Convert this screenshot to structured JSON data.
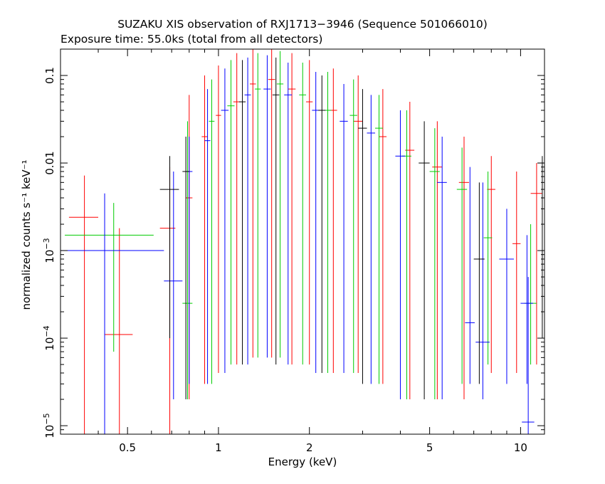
{
  "chart_data": {
    "type": "scatter",
    "title": "SUZAKU XIS observation of RXJ1713−3946 (Sequence 501066010)",
    "subtitle": "Exposure time: 55.0ks (total from all detectors)",
    "xlabel": "Energy (keV)",
    "ylabel": "normalized counts s⁻¹ keV⁻¹",
    "x_scale": "log",
    "y_scale": "log",
    "xlim": [
      0.3,
      12
    ],
    "ylim": [
      8e-06,
      0.2
    ],
    "x_ticks": [
      {
        "value": 0.5,
        "label": "0.5"
      },
      {
        "value": 1,
        "label": "1"
      },
      {
        "value": 2,
        "label": "2"
      },
      {
        "value": 5,
        "label": "5"
      },
      {
        "value": 10,
        "label": "10"
      }
    ],
    "y_ticks": [
      {
        "value": 1e-05,
        "base": "10",
        "exp": "−5"
      },
      {
        "value": 0.0001,
        "base": "10",
        "exp": "−4"
      },
      {
        "value": 0.001,
        "base": "10",
        "exp": "−3"
      },
      {
        "value": 0.01,
        "label": "0.01"
      },
      {
        "value": 0.1,
        "label": "0.1"
      }
    ],
    "grid": false,
    "series": [
      {
        "color": "#ff0000",
        "points": [
          {
            "x": 0.36,
            "y": 0.0024,
            "xlo": 0.32,
            "xhi": 0.4,
            "ylo": 8e-06,
            "yhi": 0.0072
          },
          {
            "x": 0.47,
            "y": 0.00011,
            "xlo": 0.42,
            "xhi": 0.52,
            "ylo": 8e-06,
            "yhi": 0.0018
          },
          {
            "x": 0.69,
            "y": 0.0018,
            "xlo": 0.64,
            "xhi": 0.72,
            "ylo": 8e-06,
            "yhi": 0.009
          },
          {
            "x": 0.8,
            "y": 0.004,
            "xlo": 0.78,
            "xhi": 0.82,
            "ylo": 2e-05,
            "yhi": 0.06
          },
          {
            "x": 0.9,
            "y": 0.02,
            "xlo": 0.88,
            "xhi": 0.92,
            "ylo": 3e-05,
            "yhi": 0.1
          },
          {
            "x": 1.0,
            "y": 0.035,
            "xlo": 0.98,
            "xhi": 1.02,
            "ylo": 4e-05,
            "yhi": 0.13
          },
          {
            "x": 1.15,
            "y": 0.05,
            "xlo": 1.12,
            "xhi": 1.18,
            "ylo": 5e-05,
            "yhi": 0.18
          },
          {
            "x": 1.3,
            "y": 0.08,
            "xlo": 1.27,
            "xhi": 1.33,
            "ylo": 6e-05,
            "yhi": 0.2
          },
          {
            "x": 1.5,
            "y": 0.09,
            "xlo": 1.46,
            "xhi": 1.54,
            "ylo": 6e-05,
            "yhi": 0.2
          },
          {
            "x": 1.75,
            "y": 0.07,
            "xlo": 1.7,
            "xhi": 1.8,
            "ylo": 5e-05,
            "yhi": 0.18
          },
          {
            "x": 2.0,
            "y": 0.05,
            "xlo": 1.95,
            "xhi": 2.05,
            "ylo": 5e-05,
            "yhi": 0.15
          },
          {
            "x": 2.4,
            "y": 0.04,
            "xlo": 2.33,
            "xhi": 2.47,
            "ylo": 4e-05,
            "yhi": 0.12
          },
          {
            "x": 2.9,
            "y": 0.03,
            "xlo": 2.8,
            "xhi": 3.0,
            "ylo": 4e-05,
            "yhi": 0.1
          },
          {
            "x": 3.5,
            "y": 0.02,
            "xlo": 3.4,
            "xhi": 3.6,
            "ylo": 3e-05,
            "yhi": 0.07
          },
          {
            "x": 4.3,
            "y": 0.014,
            "xlo": 4.15,
            "xhi": 4.45,
            "ylo": 2e-05,
            "yhi": 0.05
          },
          {
            "x": 5.3,
            "y": 0.009,
            "xlo": 5.1,
            "xhi": 5.5,
            "ylo": 2e-05,
            "yhi": 0.03
          },
          {
            "x": 6.5,
            "y": 0.006,
            "xlo": 6.25,
            "xhi": 6.75,
            "ylo": 2e-05,
            "yhi": 0.02
          },
          {
            "x": 8.0,
            "y": 0.005,
            "xlo": 7.75,
            "xhi": 8.25,
            "ylo": 4e-05,
            "yhi": 0.012
          },
          {
            "x": 9.7,
            "y": 0.0012,
            "xlo": 9.4,
            "xhi": 10.0,
            "ylo": 4e-05,
            "yhi": 0.008
          },
          {
            "x": 11.3,
            "y": 0.0045,
            "xlo": 10.8,
            "xhi": 11.8,
            "ylo": 5e-05,
            "yhi": 0.01
          }
        ]
      },
      {
        "color": "#00cc00",
        "points": [
          {
            "x": 0.45,
            "y": 0.0015,
            "xlo": 0.31,
            "xhi": 0.61,
            "ylo": 7e-05,
            "yhi": 0.0035
          },
          {
            "x": 0.79,
            "y": 0.00025,
            "xlo": 0.76,
            "xhi": 0.82,
            "ylo": 2e-05,
            "yhi": 0.03
          },
          {
            "x": 0.95,
            "y": 0.03,
            "xlo": 0.93,
            "xhi": 0.97,
            "ylo": 3e-05,
            "yhi": 0.09
          },
          {
            "x": 1.1,
            "y": 0.045,
            "xlo": 1.07,
            "xhi": 1.13,
            "ylo": 5e-05,
            "yhi": 0.15
          },
          {
            "x": 1.35,
            "y": 0.07,
            "xlo": 1.32,
            "xhi": 1.38,
            "ylo": 6e-05,
            "yhi": 0.18
          },
          {
            "x": 1.6,
            "y": 0.08,
            "xlo": 1.56,
            "xhi": 1.64,
            "ylo": 6e-05,
            "yhi": 0.19
          },
          {
            "x": 1.9,
            "y": 0.06,
            "xlo": 1.85,
            "xhi": 1.95,
            "ylo": 5e-05,
            "yhi": 0.14
          },
          {
            "x": 2.3,
            "y": 0.04,
            "xlo": 2.24,
            "xhi": 2.36,
            "ylo": 4e-05,
            "yhi": 0.11
          },
          {
            "x": 2.8,
            "y": 0.035,
            "xlo": 2.72,
            "xhi": 2.88,
            "ylo": 4e-05,
            "yhi": 0.09
          },
          {
            "x": 3.4,
            "y": 0.025,
            "xlo": 3.3,
            "xhi": 3.5,
            "ylo": 3e-05,
            "yhi": 0.06
          },
          {
            "x": 4.2,
            "y": 0.012,
            "xlo": 4.05,
            "xhi": 4.35,
            "ylo": 2e-05,
            "yhi": 0.04
          },
          {
            "x": 5.2,
            "y": 0.008,
            "xlo": 5.0,
            "xhi": 5.4,
            "ylo": 2e-05,
            "yhi": 0.025
          },
          {
            "x": 6.4,
            "y": 0.005,
            "xlo": 6.15,
            "xhi": 6.65,
            "ylo": 3e-05,
            "yhi": 0.015
          },
          {
            "x": 7.8,
            "y": 0.0014,
            "xlo": 7.55,
            "xhi": 8.05,
            "ylo": 5e-05,
            "yhi": 0.008
          },
          {
            "x": 10.8,
            "y": 0.00025,
            "xlo": 10.3,
            "xhi": 11.3,
            "ylo": 5e-05,
            "yhi": 0.002
          }
        ]
      },
      {
        "color": "#0000ff",
        "points": [
          {
            "x": 0.42,
            "y": 0.001,
            "xlo": 0.3,
            "xhi": 0.66,
            "ylo": 8e-06,
            "yhi": 0.0045
          },
          {
            "x": 0.71,
            "y": 0.00045,
            "xlo": 0.66,
            "xhi": 0.76,
            "ylo": 2e-05,
            "yhi": 0.008
          },
          {
            "x": 0.8,
            "y": 0.008,
            "xlo": 0.78,
            "xhi": 0.82,
            "ylo": 3e-05,
            "yhi": 0.02
          },
          {
            "x": 0.92,
            "y": 0.018,
            "xlo": 0.9,
            "xhi": 0.94,
            "ylo": 3e-05,
            "yhi": 0.07
          },
          {
            "x": 1.05,
            "y": 0.04,
            "xlo": 1.02,
            "xhi": 1.08,
            "ylo": 4e-05,
            "yhi": 0.12
          },
          {
            "x": 1.25,
            "y": 0.06,
            "xlo": 1.22,
            "xhi": 1.28,
            "ylo": 5e-05,
            "yhi": 0.16
          },
          {
            "x": 1.45,
            "y": 0.07,
            "xlo": 1.41,
            "xhi": 1.49,
            "ylo": 6e-05,
            "yhi": 0.17
          },
          {
            "x": 1.7,
            "y": 0.06,
            "xlo": 1.65,
            "xhi": 1.75,
            "ylo": 5e-05,
            "yhi": 0.14
          },
          {
            "x": 2.1,
            "y": 0.04,
            "xlo": 2.04,
            "xhi": 2.16,
            "ylo": 4e-05,
            "yhi": 0.11
          },
          {
            "x": 2.6,
            "y": 0.03,
            "xlo": 2.52,
            "xhi": 2.68,
            "ylo": 4e-05,
            "yhi": 0.08
          },
          {
            "x": 3.2,
            "y": 0.022,
            "xlo": 3.1,
            "xhi": 3.3,
            "ylo": 3e-05,
            "yhi": 0.06
          },
          {
            "x": 4.0,
            "y": 0.012,
            "xlo": 3.85,
            "xhi": 4.15,
            "ylo": 2e-05,
            "yhi": 0.04
          },
          {
            "x": 5.5,
            "y": 0.006,
            "xlo": 5.3,
            "xhi": 5.7,
            "ylo": 2e-05,
            "yhi": 0.02
          },
          {
            "x": 6.8,
            "y": 0.00015,
            "xlo": 6.55,
            "xhi": 7.05,
            "ylo": 3e-05,
            "yhi": 0.009
          },
          {
            "x": 7.5,
            "y": 9e-05,
            "xlo": 7.1,
            "xhi": 7.9,
            "ylo": 2e-05,
            "yhi": 0.006
          },
          {
            "x": 9.0,
            "y": 0.0008,
            "xlo": 8.5,
            "xhi": 9.5,
            "ylo": 3e-05,
            "yhi": 0.003
          },
          {
            "x": 10.5,
            "y": 0.00025,
            "xlo": 10.0,
            "xhi": 11.0,
            "ylo": 3e-05,
            "yhi": 0.0015
          },
          {
            "x": 10.6,
            "y": 1.1e-05,
            "xlo": 10.1,
            "xhi": 11.1,
            "ylo": 8e-06,
            "yhi": 0.0005
          }
        ]
      },
      {
        "color": "#000000",
        "points": [
          {
            "x": 0.69,
            "y": 0.005,
            "xlo": 0.64,
            "xhi": 0.74,
            "ylo": 0.0001,
            "yhi": 0.012
          },
          {
            "x": 0.78,
            "y": 0.008,
            "xlo": 0.76,
            "xhi": 0.8,
            "ylo": 2e-05,
            "yhi": 0.02
          },
          {
            "x": 1.2,
            "y": 0.05,
            "xlo": 1.17,
            "xhi": 1.23,
            "ylo": 5e-05,
            "yhi": 0.15
          },
          {
            "x": 1.55,
            "y": 0.06,
            "xlo": 1.51,
            "xhi": 1.59,
            "ylo": 5e-05,
            "yhi": 0.16
          },
          {
            "x": 2.2,
            "y": 0.04,
            "xlo": 2.14,
            "xhi": 2.26,
            "ylo": 4e-05,
            "yhi": 0.1
          },
          {
            "x": 3.0,
            "y": 0.025,
            "xlo": 2.9,
            "xhi": 3.1,
            "ylo": 3e-05,
            "yhi": 0.07
          },
          {
            "x": 4.8,
            "y": 0.01,
            "xlo": 4.6,
            "xhi": 5.0,
            "ylo": 2e-05,
            "yhi": 0.03
          },
          {
            "x": 7.3,
            "y": 0.0008,
            "xlo": 7.0,
            "xhi": 7.6,
            "ylo": 3e-05,
            "yhi": 0.006
          },
          {
            "x": 11.8,
            "y": 0.01,
            "xlo": 11.4,
            "xhi": 12.0,
            "ylo": 0.0001,
            "yhi": 0.012
          }
        ]
      }
    ]
  }
}
